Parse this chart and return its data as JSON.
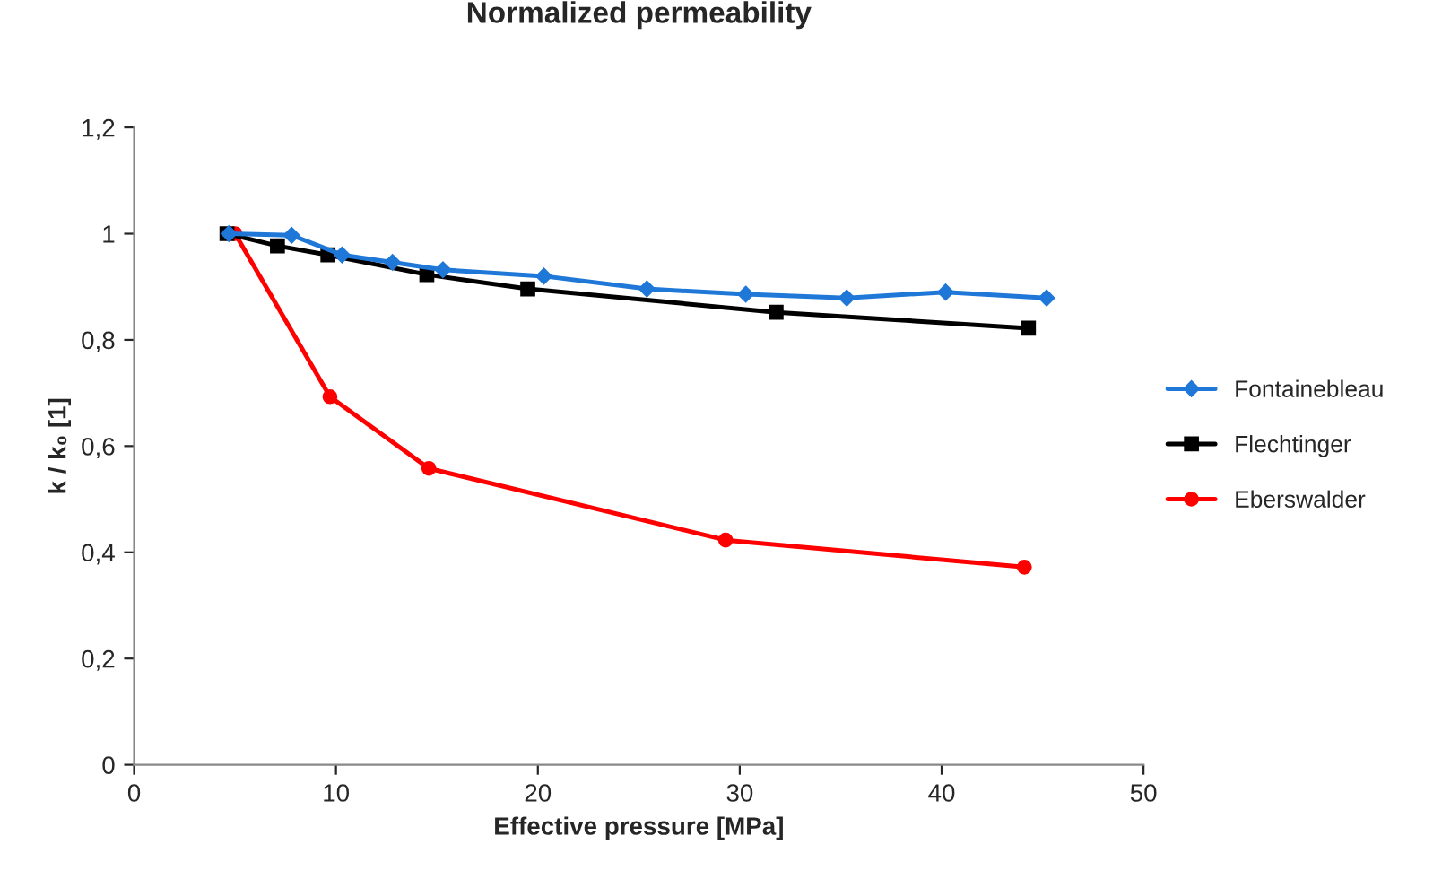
{
  "chart_data": {
    "type": "line",
    "title": "Normalized permeability",
    "xlabel": "Effective pressure [MPa]",
    "ylabel": "k / k₀ [1]",
    "xlim": [
      0,
      50
    ],
    "xticks": [
      0,
      10,
      20,
      30,
      40,
      50
    ],
    "ylim": [
      0,
      1.2
    ],
    "yticks": [
      0,
      {
        "value": 0.2,
        "label": "0,2"
      },
      {
        "value": 0.4,
        "label": "0,4"
      },
      {
        "value": 0.6,
        "label": "0,6"
      },
      {
        "value": 0.8,
        "label": "0,8"
      },
      1,
      {
        "value": 1.2,
        "label": "1,2"
      }
    ],
    "grid": false,
    "legend": "right",
    "line_style": "solid",
    "series": [
      {
        "name": "Fontainebleau",
        "color": "#1f78d8",
        "marker": "diamond",
        "x": [
          4.7,
          7.8,
          10.3,
          12.8,
          15.3,
          20.3,
          25.4,
          30.3,
          35.3,
          40.2,
          45.2
        ],
        "values": [
          1.0,
          0.997,
          0.96,
          0.946,
          0.932,
          0.92,
          0.896,
          0.886,
          0.879,
          0.89,
          0.879
        ]
      },
      {
        "name": "Flechtinger",
        "color": "#000000",
        "marker": "square",
        "x": [
          4.6,
          7.1,
          9.6,
          14.5,
          19.5,
          31.8,
          44.3
        ],
        "values": [
          1.0,
          0.977,
          0.96,
          0.923,
          0.896,
          0.852,
          0.822
        ]
      },
      {
        "name": "Eberswalder",
        "color": "#ff0000",
        "marker": "circle",
        "x": [
          5.0,
          9.7,
          14.6,
          29.3,
          44.1
        ],
        "values": [
          1.0,
          0.693,
          0.558,
          0.423,
          0.372
        ]
      }
    ]
  }
}
